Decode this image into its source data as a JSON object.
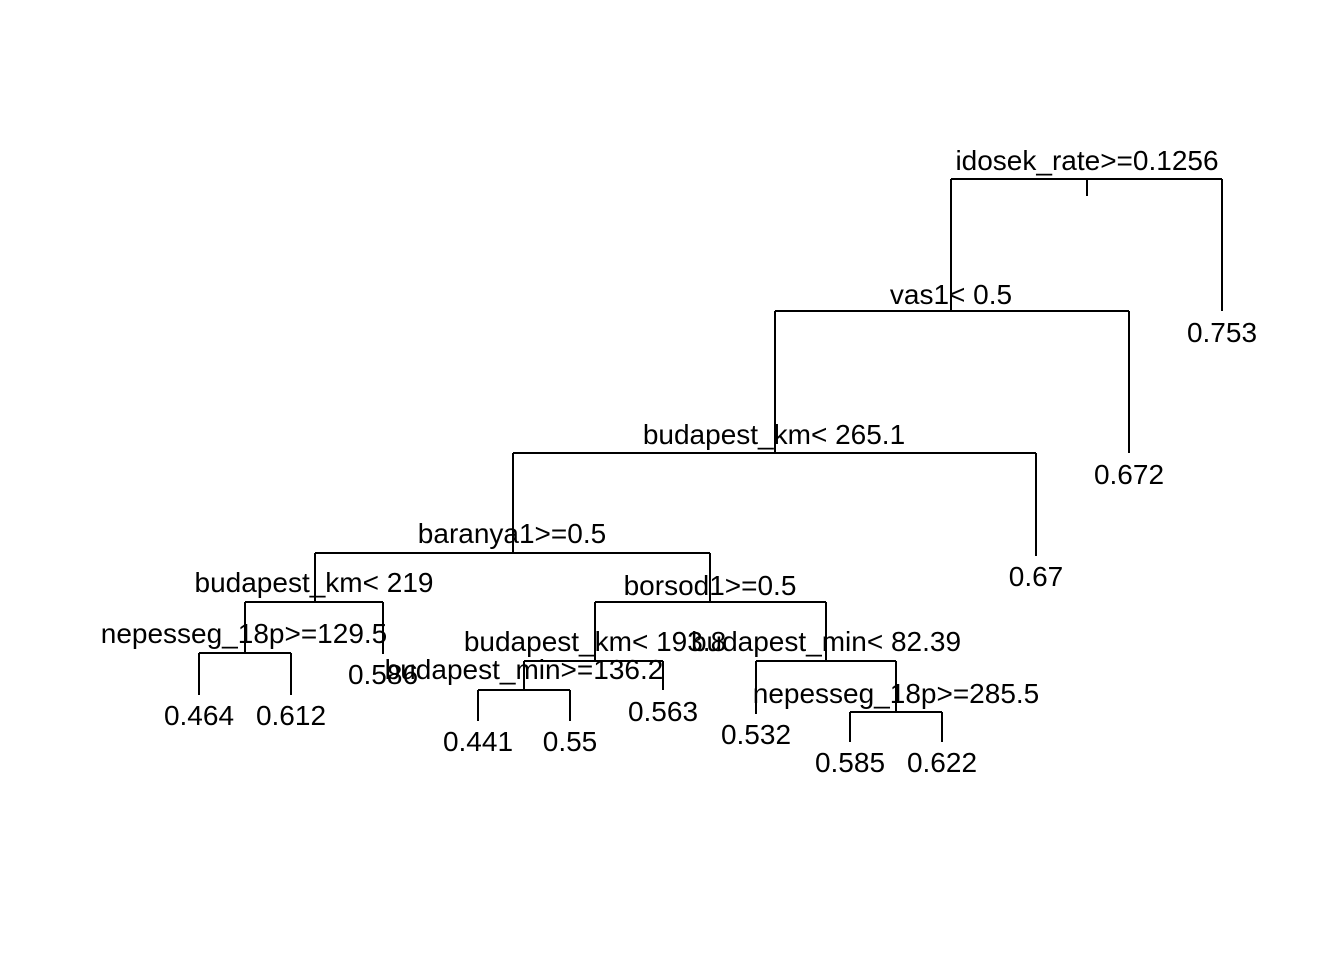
{
  "tree": {
    "line_color": "#000000",
    "background": "#ffffff",
    "splits": {
      "root": "idosek_rate>=0.1256",
      "n2": "vas1< 0.5",
      "n3": "budapest_km< 265.1",
      "n4": "baranya1>=0.5",
      "n5": "budapest_km< 219",
      "n6": "nepesseg_18p>=129.5",
      "n7": "borsod1>=0.5",
      "n8": "budapest_km< 193.8",
      "n9": "budapest_min>=136.2",
      "n10": "budapest_min< 82.39",
      "n11": "nepesseg_18p>=285.5"
    },
    "leaves": {
      "l_753": "0.753",
      "l_672": "0.672",
      "l_67": "0.67",
      "l_586": "0.586",
      "l_464": "0.464",
      "l_612": "0.612",
      "l_563": "0.563",
      "l_441": "0.441",
      "l_55": "0.55",
      "l_532": "0.532",
      "l_585": "0.585",
      "l_622": "0.622"
    }
  }
}
